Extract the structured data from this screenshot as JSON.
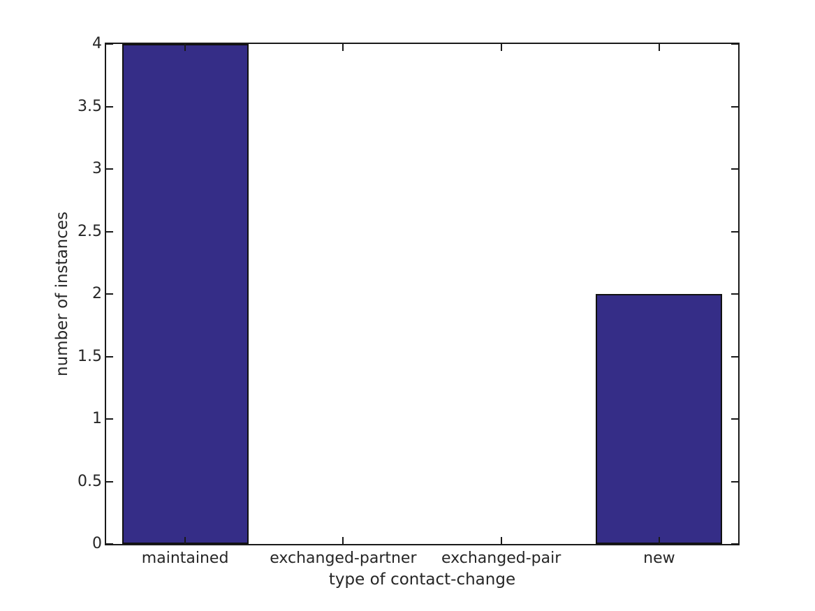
{
  "figure": {
    "background_color": "#ffffff",
    "axis_color": "#1a1a1a",
    "text_color": "#262626"
  },
  "chart_data": {
    "type": "bar",
    "title": "",
    "categories": [
      "maintained",
      "exchanged-partner",
      "exchanged-pair",
      "new"
    ],
    "values": [
      4,
      0,
      0,
      2
    ],
    "xlabel": "type of contact-change",
    "ylabel": "number of instances",
    "ylim": [
      0,
      4
    ],
    "yticks": [
      0,
      0.5,
      1,
      1.5,
      2,
      2.5,
      3,
      3.5,
      4
    ],
    "ytick_labels": [
      "0",
      "0.5",
      "1",
      "1.5",
      "2",
      "2.5",
      "3",
      "3.5",
      "4"
    ],
    "bar_color": "#352d87",
    "bar_edge_color": "#111111",
    "bar_width_fraction": 0.8,
    "grid": false,
    "legend": null,
    "box_on": true,
    "tick_direction": "in"
  }
}
